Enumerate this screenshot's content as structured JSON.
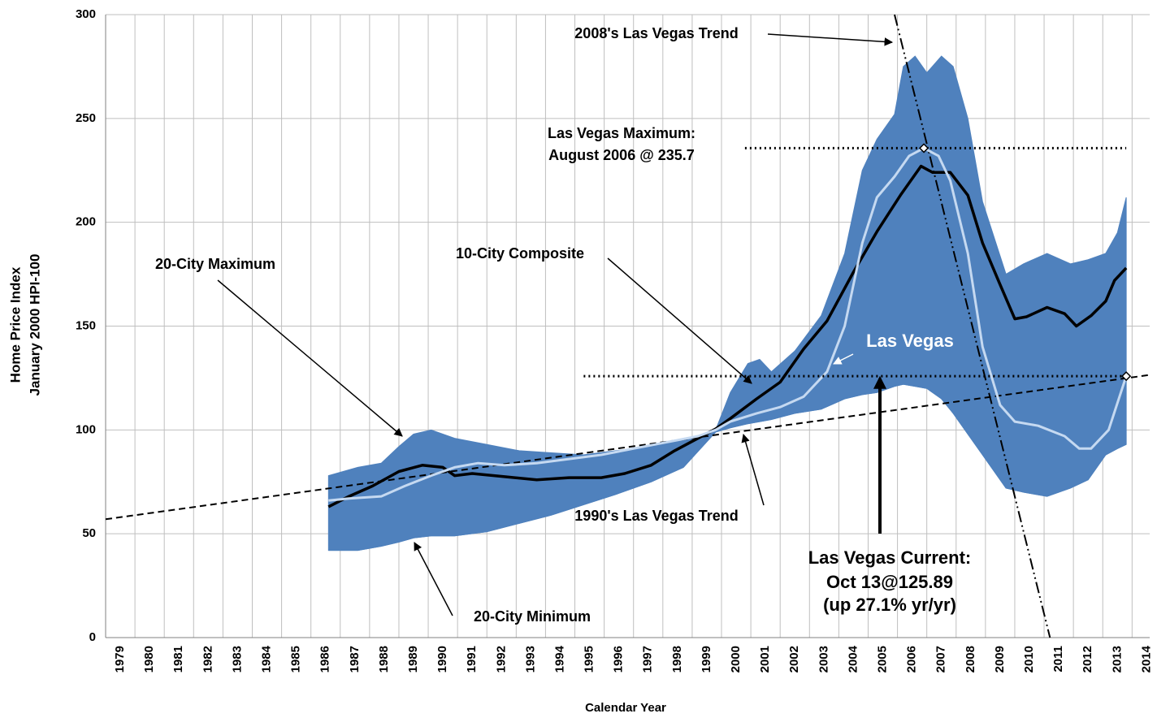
{
  "chart_data": {
    "type": "line",
    "y_label": [
      "Home Price Index",
      "January 2000 HPI-100"
    ],
    "x_label": "Calendar Year",
    "xlim": [
      1979,
      2014.6
    ],
    "ylim": [
      0,
      300
    ],
    "yticks": [
      0,
      50,
      100,
      150,
      200,
      250,
      300
    ],
    "xticks": [
      1979,
      1980,
      1981,
      1982,
      1983,
      1984,
      1985,
      1986,
      1987,
      1988,
      1989,
      1990,
      1991,
      1992,
      1993,
      1994,
      1995,
      1996,
      1997,
      1998,
      1999,
      2000,
      2001,
      2002,
      2003,
      2004,
      2005,
      2006,
      2007,
      2008,
      2009,
      2010,
      2011,
      2012,
      2013,
      2014
    ],
    "grid": true,
    "band": {
      "upper_name": "20-City Maximum",
      "lower_name": "20-City Minimum",
      "color": "#4f81bd",
      "x": [
        1986.6,
        1987.6,
        1988.4,
        1989.0,
        1989.5,
        1990.1,
        1990.9,
        1992.0,
        1993.1,
        1994.2,
        1995.3,
        1996.4,
        1997.6,
        1998.7,
        1999.8,
        2000.3,
        2000.9,
        2001.3,
        2001.7,
        2002.5,
        2003.4,
        2004.2,
        2004.8,
        2005.3,
        2005.9,
        2006.2,
        2006.6,
        2007.0,
        2007.5,
        2007.9,
        2008.4,
        2008.9,
        2009.7,
        2010.3,
        2011.1,
        2011.9,
        2012.5,
        2013.1,
        2013.5,
        2013.8
      ],
      "upper": [
        78,
        82,
        84,
        92,
        98,
        100,
        96,
        93,
        90,
        89,
        88,
        90,
        92,
        95,
        100,
        118,
        132,
        134,
        128,
        138,
        155,
        185,
        225,
        240,
        252,
        275,
        280,
        272,
        280,
        275,
        250,
        210,
        175,
        180,
        185,
        180,
        182,
        185,
        195,
        212
      ],
      "lower": [
        42,
        42,
        44,
        46,
        48,
        49,
        49,
        51,
        55,
        59,
        64,
        69,
        75,
        82,
        99,
        101,
        103,
        104,
        105,
        108,
        110,
        115,
        117,
        118,
        121,
        122,
        121,
        120,
        115,
        108,
        98,
        88,
        72,
        70,
        68,
        72,
        76,
        88,
        91,
        93
      ]
    },
    "series": [
      {
        "name": "10-City Composite",
        "color": "#000000",
        "x": [
          1986.6,
          1987.3,
          1988.1,
          1989.0,
          1989.8,
          1990.5,
          1990.9,
          1991.5,
          1992.6,
          1993.7,
          1994.8,
          1995.9,
          1996.7,
          1997.6,
          1998.4,
          1999.2,
          1999.8,
          2000.3,
          2001.2,
          2002.0,
          2002.8,
          2003.6,
          2004.5,
          2005.3,
          2006.1,
          2006.8,
          2007.2,
          2007.8,
          2008.4,
          2008.9,
          2009.5,
          2010.0,
          2010.4,
          2011.1,
          2011.7,
          2012.1,
          2012.6,
          2013.1,
          2013.4,
          2013.8
        ],
        "values": [
          63,
          68,
          73,
          80,
          83,
          82,
          78,
          79,
          77.5,
          76,
          77,
          77,
          79,
          83,
          90,
          96,
          100.5,
          105.5,
          115,
          123,
          139,
          152.5,
          176,
          195.5,
          213,
          227,
          224,
          224,
          213,
          190,
          170,
          153.5,
          154.5,
          159,
          156,
          150,
          155,
          162,
          172,
          178
        ]
      },
      {
        "name": "Las Vegas",
        "color": "#c5d9f1",
        "x": [
          1986.6,
          1987.3,
          1988.4,
          1989.2,
          1990.1,
          1990.9,
          1991.7,
          1992.6,
          1993.7,
          1994.8,
          1995.9,
          1997.0,
          1998.1,
          1999.2,
          1999.8,
          2000.3,
          2001.2,
          2002.0,
          2002.8,
          2003.6,
          2004.2,
          2004.8,
          2005.3,
          2005.9,
          2006.4,
          2006.9,
          2007.4,
          2007.8,
          2008.4,
          2008.9,
          2009.5,
          2010.0,
          2010.8,
          2011.7,
          2012.2,
          2012.6,
          2013.2,
          2013.8
        ],
        "values": [
          66,
          67,
          68,
          73,
          78,
          82,
          84,
          83,
          84,
          86,
          88,
          91,
          94,
          97,
          100,
          104,
          108,
          111,
          116,
          128,
          150,
          190,
          212,
          222,
          232,
          235.7,
          232,
          220,
          185,
          140,
          112,
          104,
          102,
          97,
          91,
          91,
          100,
          125.89
        ]
      }
    ],
    "trend_lines": [
      {
        "name": "1990's Las Vegas Trend",
        "style": "dashed",
        "x": [
          1979,
          2014.6
        ],
        "values": [
          57,
          126.5
        ]
      },
      {
        "name": "2008's Las Vegas Trend",
        "style": "dash-dot",
        "x": [
          2005.9,
          2011.2
        ],
        "values": [
          300,
          0
        ]
      }
    ],
    "reference_lines": [
      {
        "y": 235.7,
        "x": [
          2000.8,
          2013.8
        ]
      },
      {
        "y": 125.89,
        "x": [
          1995.3,
          2013.8
        ]
      }
    ],
    "markers": [
      {
        "x": 2006.9,
        "y": 235.7
      },
      {
        "x": 2013.8,
        "y": 125.89
      }
    ],
    "annotations": [
      "Las Vegas Maximum:",
      "August 2006 @ 235.7",
      "Las Vegas Current:",
      "Oct 13@125.89",
      "(up 27.1% yr/yr)"
    ]
  }
}
